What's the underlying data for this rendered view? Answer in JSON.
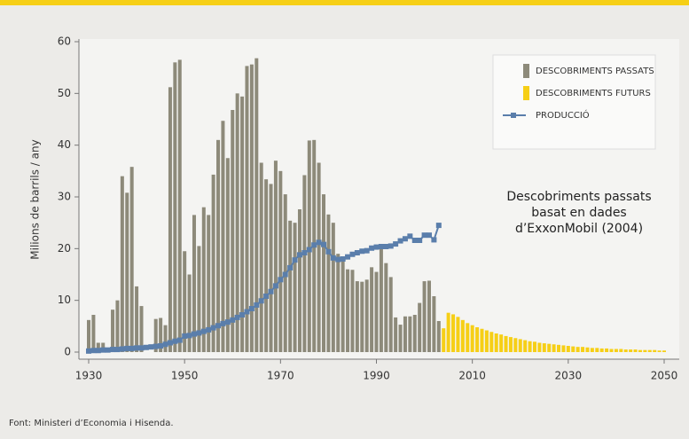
{
  "chart_data": {
    "type": "bar",
    "ylabel": "Milions de barrils / any",
    "source": "Font: Ministeri d’Economia i Hisenda.",
    "annotation": [
      "Descobriments passats",
      "basat en dades",
      "d’ExxonMobil (2004)"
    ],
    "xlim": [
      1930,
      2050
    ],
    "xticks": [
      1930,
      1950,
      1970,
      1990,
      2010,
      2030,
      2050
    ],
    "ylim": [
      0,
      60
    ],
    "yticks": [
      0,
      10,
      20,
      30,
      40,
      50,
      60
    ],
    "legend": "upper right",
    "series": [
      {
        "name": "DESCOBRIMENTS PASSATS",
        "type": "bar",
        "color": "#8d8a7a",
        "x": [
          1930,
          1931,
          1932,
          1933,
          1934,
          1935,
          1936,
          1937,
          1938,
          1939,
          1940,
          1941,
          1942,
          1943,
          1944,
          1945,
          1946,
          1947,
          1948,
          1949,
          1950,
          1951,
          1952,
          1953,
          1954,
          1955,
          1956,
          1957,
          1958,
          1959,
          1960,
          1961,
          1962,
          1963,
          1964,
          1965,
          1966,
          1967,
          1968,
          1969,
          1970,
          1971,
          1972,
          1973,
          1974,
          1975,
          1976,
          1977,
          1978,
          1979,
          1980,
          1981,
          1982,
          1983,
          1984,
          1985,
          1986,
          1987,
          1988,
          1989,
          1990,
          1991,
          1992,
          1993,
          1994,
          1995,
          1996,
          1997,
          1998,
          1999,
          2000,
          2001,
          2002,
          2003
        ],
        "values": [
          6.2,
          7.2,
          1.8,
          1.8,
          0,
          8.2,
          10,
          34,
          30.8,
          35.8,
          12.7,
          8.9,
          0,
          0,
          6.4,
          6.6,
          5.2,
          51.2,
          56,
          56.5,
          19.5,
          15,
          26.5,
          20.5,
          28,
          26.5,
          34.3,
          41,
          44.7,
          37.5,
          46.8,
          50,
          49.4,
          55.3,
          55.6,
          56.8,
          36.6,
          33.4,
          32.5,
          37,
          35,
          30.5,
          25.4,
          25,
          27.6,
          34.2,
          40.9,
          41,
          36.6,
          30.5,
          26.6,
          25,
          19,
          17.8,
          16,
          15.9,
          13.7,
          13.6,
          14,
          16.4,
          15.5,
          20,
          17.2,
          14.5,
          6.7,
          5.3,
          6.9,
          6.9,
          7.2,
          9.5,
          13.7,
          13.8,
          10.8,
          6
        ]
      },
      {
        "name": "DESCOBRIMENTS FUTURS",
        "type": "bar",
        "color": "#f6cf16",
        "x": [
          2004,
          2005,
          2006,
          2007,
          2008,
          2009,
          2010,
          2011,
          2012,
          2013,
          2014,
          2015,
          2016,
          2017,
          2018,
          2019,
          2020,
          2021,
          2022,
          2023,
          2024,
          2025,
          2026,
          2027,
          2028,
          2029,
          2030,
          2031,
          2032,
          2033,
          2034,
          2035,
          2036,
          2037,
          2038,
          2039,
          2040,
          2041,
          2042,
          2043,
          2044,
          2045,
          2046,
          2047,
          2048,
          2049,
          2050
        ],
        "values": [
          4.6,
          7.6,
          7.3,
          6.8,
          6.2,
          5.6,
          5.2,
          4.8,
          4.5,
          4.2,
          3.9,
          3.6,
          3.4,
          3.1,
          2.9,
          2.7,
          2.5,
          2.3,
          2.1,
          2.0,
          1.8,
          1.7,
          1.6,
          1.5,
          1.4,
          1.3,
          1.2,
          1.1,
          1.0,
          1.0,
          0.9,
          0.8,
          0.8,
          0.7,
          0.7,
          0.6,
          0.6,
          0.6,
          0.5,
          0.5,
          0.5,
          0.4,
          0.4,
          0.4,
          0.4,
          0.3,
          0.3
        ]
      },
      {
        "name": "PRODUCCIÓ",
        "type": "line",
        "color": "#5a7eab",
        "x": [
          1930,
          1931,
          1932,
          1933,
          1934,
          1935,
          1936,
          1937,
          1938,
          1939,
          1940,
          1941,
          1942,
          1943,
          1944,
          1945,
          1946,
          1947,
          1948,
          1949,
          1950,
          1951,
          1952,
          1953,
          1954,
          1955,
          1956,
          1957,
          1958,
          1959,
          1960,
          1961,
          1962,
          1963,
          1964,
          1965,
          1966,
          1967,
          1968,
          1969,
          1970,
          1971,
          1972,
          1973,
          1974,
          1975,
          1976,
          1977,
          1978,
          1979,
          1980,
          1981,
          1982,
          1983,
          1984,
          1985,
          1986,
          1987,
          1988,
          1989,
          1990,
          1991,
          1992,
          1993,
          1994,
          1995,
          1996,
          1997,
          1998,
          1999,
          2000,
          2001,
          2002,
          2003
        ],
        "values": [
          0.2,
          0.3,
          0.3,
          0.4,
          0.4,
          0.5,
          0.5,
          0.6,
          0.7,
          0.7,
          0.8,
          0.8,
          0.9,
          1.0,
          1.1,
          1.2,
          1.5,
          1.8,
          2.1,
          2.3,
          3.1,
          3.2,
          3.5,
          3.7,
          4.0,
          4.3,
          4.7,
          5.1,
          5.5,
          5.8,
          6.2,
          6.7,
          7.2,
          7.8,
          8.4,
          9.1,
          9.9,
          10.8,
          11.7,
          12.8,
          14.0,
          15.0,
          16.3,
          17.8,
          18.8,
          19.2,
          19.8,
          20.7,
          21.2,
          20.8,
          19.4,
          18.2,
          17.9,
          18.0,
          18.4,
          18.9,
          19.2,
          19.5,
          19.6,
          20.1,
          20.3,
          20.4,
          20.4,
          20.5,
          20.9,
          21.5,
          21.9,
          22.4,
          21.6,
          21.6,
          22.6,
          22.6,
          21.7,
          24.5
        ]
      }
    ]
  }
}
